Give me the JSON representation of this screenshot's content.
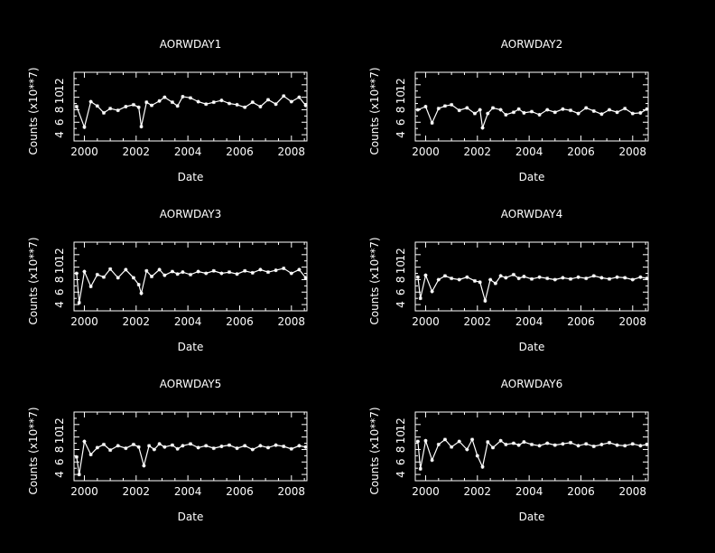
{
  "figure": {
    "background": "#000000",
    "foreground": "#ffffff"
  },
  "chart_data": [
    {
      "type": "scatter",
      "title": "AORWDAY1",
      "xlabel": "Date",
      "ylabel": "Counts (x10**7)",
      "xlim": [
        1999.6,
        2008.6
      ],
      "ylim": [
        3,
        14
      ],
      "xticks": [
        2000,
        2002,
        2004,
        2006,
        2008
      ],
      "xtick_labels": [
        "2000",
        "2002",
        "2004",
        "2006",
        "2008"
      ],
      "yticks": [
        4,
        6,
        8,
        10,
        12
      ],
      "ytick_labels": [
        "4",
        "6",
        "8",
        "10",
        "12"
      ],
      "series": [
        {
          "x": [
            1999.7,
            2000.0,
            2000.25,
            2000.5,
            2000.75,
            2001.0,
            2001.3,
            2001.6,
            2001.9,
            2002.1,
            2002.2,
            2002.4,
            2002.6,
            2002.9,
            2003.1,
            2003.4,
            2003.6,
            2003.8,
            2004.1,
            2004.4,
            2004.7,
            2005.0,
            2005.3,
            2005.6,
            2005.9,
            2006.2,
            2006.5,
            2006.8,
            2007.1,
            2007.4,
            2007.7,
            2008.0,
            2008.3,
            2008.55
          ],
          "y": [
            8.5,
            5.2,
            9.3,
            8.6,
            7.5,
            8.2,
            7.9,
            8.5,
            8.8,
            8.4,
            5.3,
            9.2,
            8.7,
            9.4,
            10.0,
            9.2,
            8.6,
            10.1,
            9.9,
            9.3,
            8.9,
            9.2,
            9.5,
            9.0,
            8.8,
            8.4,
            9.2,
            8.5,
            9.6,
            8.9,
            10.2,
            9.3,
            10.0,
            8.7
          ]
        }
      ]
    },
    {
      "type": "scatter",
      "title": "AORWDAY2",
      "xlabel": "Date",
      "ylabel": "Counts (x10**7)",
      "xlim": [
        1999.6,
        2008.6
      ],
      "ylim": [
        3,
        14
      ],
      "xticks": [
        2000,
        2002,
        2004,
        2006,
        2008
      ],
      "xtick_labels": [
        "2000",
        "2002",
        "2004",
        "2006",
        "2008"
      ],
      "yticks": [
        4,
        6,
        8,
        10,
        12
      ],
      "ytick_labels": [
        "4",
        "6",
        "8",
        "10",
        "12"
      ],
      "series": [
        {
          "x": [
            1999.7,
            2000.0,
            2000.25,
            2000.5,
            2000.75,
            2001.0,
            2001.3,
            2001.6,
            2001.9,
            2002.1,
            2002.2,
            2002.4,
            2002.6,
            2002.9,
            2003.1,
            2003.4,
            2003.6,
            2003.8,
            2004.1,
            2004.4,
            2004.7,
            2005.0,
            2005.3,
            2005.6,
            2005.9,
            2006.2,
            2006.5,
            2006.8,
            2007.1,
            2007.4,
            2007.7,
            2008.0,
            2008.3,
            2008.55
          ],
          "y": [
            8.0,
            8.5,
            5.9,
            8.2,
            8.6,
            8.8,
            7.9,
            8.3,
            7.4,
            8.0,
            5.1,
            7.4,
            8.3,
            8.0,
            7.2,
            7.6,
            8.1,
            7.5,
            7.7,
            7.2,
            8.0,
            7.6,
            8.1,
            7.9,
            7.4,
            8.3,
            7.8,
            7.3,
            8.0,
            7.6,
            8.2,
            7.4,
            7.5,
            8.1
          ]
        }
      ]
    },
    {
      "type": "scatter",
      "title": "AORWDAY3",
      "xlabel": "Date",
      "ylabel": "Counts (x10**7)",
      "xlim": [
        1999.6,
        2008.6
      ],
      "ylim": [
        3,
        14
      ],
      "xticks": [
        2000,
        2002,
        2004,
        2006,
        2008
      ],
      "xtick_labels": [
        "2000",
        "2002",
        "2004",
        "2006",
        "2008"
      ],
      "yticks": [
        4,
        6,
        8,
        10,
        12
      ],
      "ytick_labels": [
        "4",
        "6",
        "8",
        "10",
        "12"
      ],
      "series": [
        {
          "x": [
            1999.7,
            1999.8,
            2000.0,
            2000.25,
            2000.5,
            2000.75,
            2001.0,
            2001.3,
            2001.6,
            2001.9,
            2002.1,
            2002.2,
            2002.4,
            2002.6,
            2002.9,
            2003.1,
            2003.4,
            2003.6,
            2003.8,
            2004.1,
            2004.4,
            2004.7,
            2005.0,
            2005.3,
            2005.6,
            2005.9,
            2006.2,
            2006.5,
            2006.8,
            2007.1,
            2007.4,
            2007.7,
            2008.0,
            2008.3,
            2008.55
          ],
          "y": [
            9.0,
            4.3,
            9.3,
            6.9,
            8.8,
            8.4,
            9.7,
            8.3,
            9.6,
            8.3,
            7.2,
            5.8,
            9.4,
            8.5,
            9.6,
            8.7,
            9.3,
            8.9,
            9.2,
            8.8,
            9.3,
            9.0,
            9.4,
            9.0,
            9.2,
            8.9,
            9.4,
            9.1,
            9.6,
            9.2,
            9.5,
            9.8,
            9.0,
            9.6,
            8.3
          ]
        }
      ]
    },
    {
      "type": "scatter",
      "title": "AORWDAY4",
      "xlabel": "Date",
      "ylabel": "Counts (x10**7)",
      "xlim": [
        1999.6,
        2008.6
      ],
      "ylim": [
        3,
        14
      ],
      "xticks": [
        2000,
        2002,
        2004,
        2006,
        2008
      ],
      "xtick_labels": [
        "2000",
        "2002",
        "2004",
        "2006",
        "2008"
      ],
      "yticks": [
        4,
        6,
        8,
        10,
        12
      ],
      "ytick_labels": [
        "4",
        "6",
        "8",
        "10",
        "12"
      ],
      "series": [
        {
          "x": [
            1999.7,
            1999.8,
            2000.0,
            2000.25,
            2000.5,
            2000.75,
            2001.0,
            2001.3,
            2001.6,
            2001.9,
            2002.1,
            2002.3,
            2002.5,
            2002.7,
            2002.9,
            2003.1,
            2003.4,
            2003.6,
            2003.8,
            2004.1,
            2004.4,
            2004.7,
            2005.0,
            2005.3,
            2005.6,
            2005.9,
            2006.2,
            2006.5,
            2006.8,
            2007.1,
            2007.4,
            2007.7,
            2008.0,
            2008.3,
            2008.55
          ],
          "y": [
            8.4,
            5.0,
            8.7,
            6.1,
            8.0,
            8.6,
            8.2,
            8.0,
            8.4,
            7.8,
            7.6,
            4.6,
            8.0,
            7.4,
            8.6,
            8.3,
            8.8,
            8.2,
            8.5,
            8.1,
            8.4,
            8.2,
            8.0,
            8.3,
            8.1,
            8.4,
            8.2,
            8.6,
            8.3,
            8.1,
            8.4,
            8.3,
            8.0,
            8.4,
            8.2
          ]
        }
      ]
    },
    {
      "type": "scatter",
      "title": "AORWDAY5",
      "xlabel": "Date",
      "ylabel": "Counts (x10**7)",
      "xlim": [
        1999.6,
        2008.6
      ],
      "ylim": [
        3,
        14
      ],
      "xticks": [
        2000,
        2002,
        2004,
        2006,
        2008
      ],
      "xtick_labels": [
        "2000",
        "2002",
        "2004",
        "2006",
        "2008"
      ],
      "yticks": [
        4,
        6,
        8,
        10,
        12
      ],
      "ytick_labels": [
        "4",
        "6",
        "8",
        "10",
        "12"
      ],
      "series": [
        {
          "x": [
            1999.7,
            1999.8,
            2000.0,
            2000.25,
            2000.5,
            2000.75,
            2001.0,
            2001.3,
            2001.6,
            2001.9,
            2002.1,
            2002.3,
            2002.5,
            2002.7,
            2002.9,
            2003.1,
            2003.4,
            2003.6,
            2003.8,
            2004.1,
            2004.4,
            2004.7,
            2005.0,
            2005.3,
            2005.6,
            2005.9,
            2006.2,
            2006.5,
            2006.8,
            2007.1,
            2007.4,
            2007.7,
            2008.0,
            2008.3,
            2008.55
          ],
          "y": [
            6.8,
            4.0,
            9.3,
            7.2,
            8.3,
            8.8,
            7.9,
            8.6,
            8.2,
            8.8,
            8.4,
            5.4,
            8.6,
            8.0,
            8.9,
            8.4,
            8.7,
            8.1,
            8.6,
            8.9,
            8.3,
            8.6,
            8.2,
            8.5,
            8.7,
            8.2,
            8.6,
            8.0,
            8.6,
            8.3,
            8.7,
            8.5,
            8.1,
            8.6,
            8.4
          ]
        }
      ]
    },
    {
      "type": "scatter",
      "title": "AORWDAY6",
      "xlabel": "Date",
      "ylabel": "Counts (x10**7)",
      "xlim": [
        1999.6,
        2008.6
      ],
      "ylim": [
        3,
        14
      ],
      "xticks": [
        2000,
        2002,
        2004,
        2006,
        2008
      ],
      "xtick_labels": [
        "2000",
        "2002",
        "2004",
        "2006",
        "2008"
      ],
      "yticks": [
        4,
        6,
        8,
        10,
        12
      ],
      "ytick_labels": [
        "4",
        "6",
        "8",
        "10",
        "12"
      ],
      "series": [
        {
          "x": [
            1999.7,
            1999.8,
            2000.0,
            2000.25,
            2000.5,
            2000.75,
            2001.0,
            2001.3,
            2001.6,
            2001.8,
            2002.0,
            2002.2,
            2002.4,
            2002.6,
            2002.9,
            2003.1,
            2003.4,
            2003.6,
            2003.8,
            2004.1,
            2004.4,
            2004.7,
            2005.0,
            2005.3,
            2005.6,
            2005.9,
            2006.2,
            2006.5,
            2006.8,
            2007.1,
            2007.4,
            2007.7,
            2008.0,
            2008.3,
            2008.55
          ],
          "y": [
            9.3,
            4.9,
            9.4,
            6.3,
            8.8,
            9.6,
            8.4,
            9.3,
            8.0,
            9.6,
            7.0,
            5.2,
            9.2,
            8.3,
            9.4,
            8.8,
            9.0,
            8.7,
            9.2,
            8.8,
            8.6,
            9.0,
            8.7,
            8.9,
            9.1,
            8.6,
            8.9,
            8.5,
            8.8,
            9.1,
            8.7,
            8.6,
            8.9,
            8.6,
            8.8
          ]
        }
      ]
    }
  ]
}
